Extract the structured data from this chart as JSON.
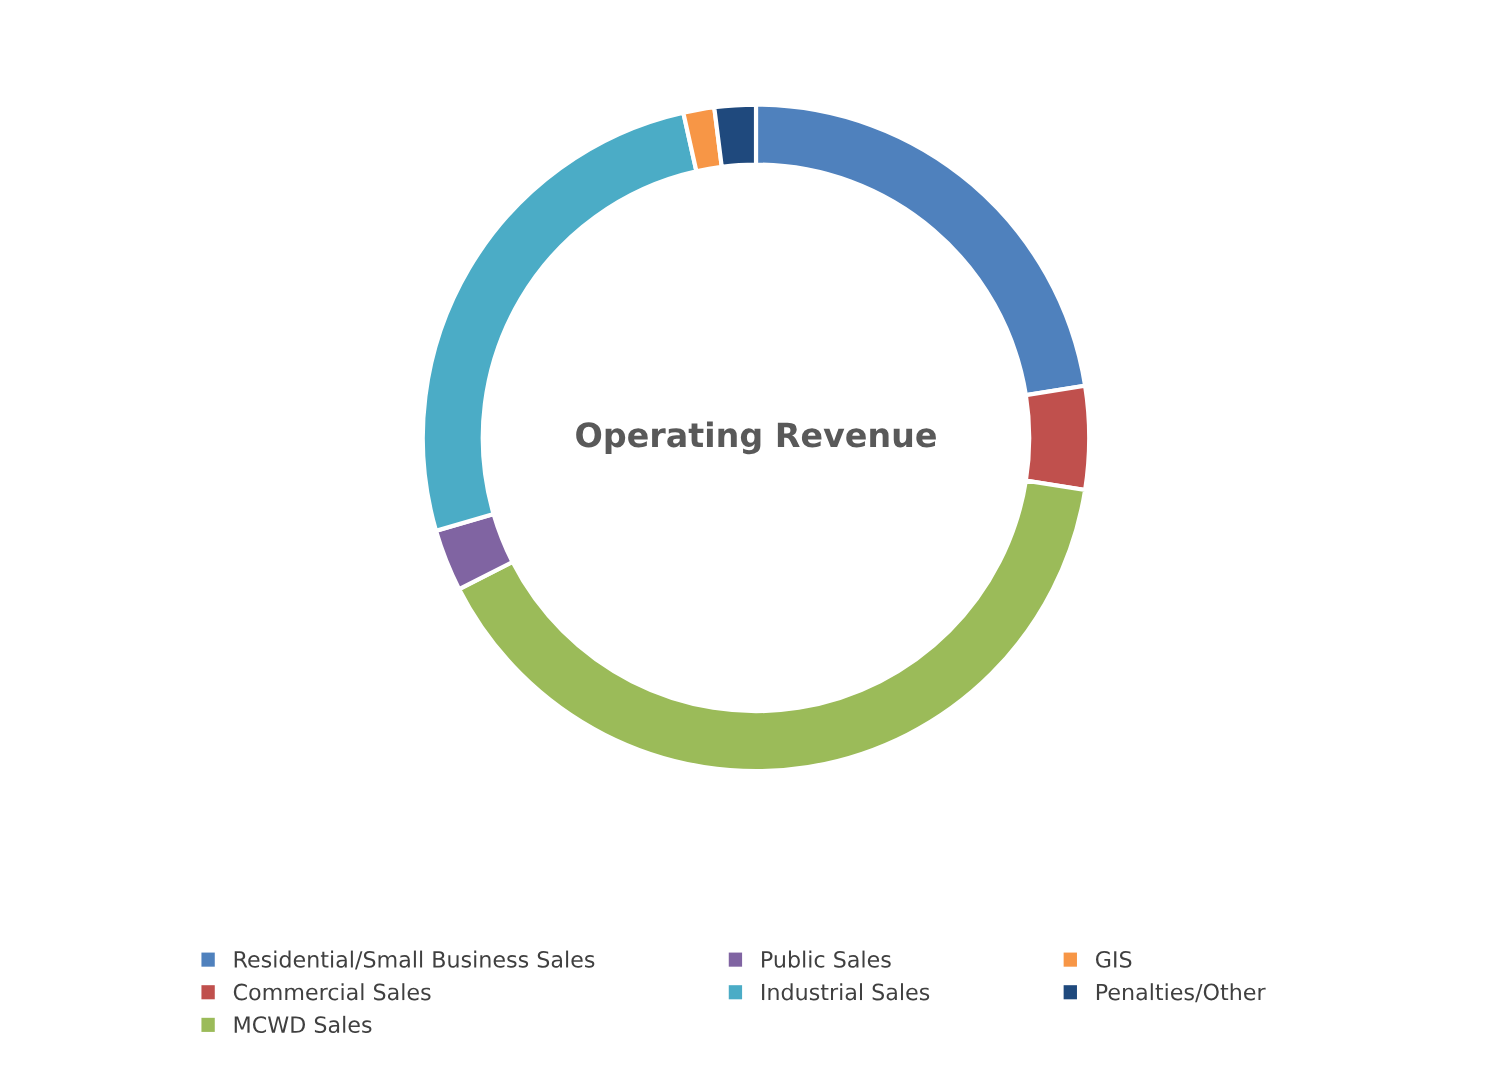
{
  "chart_data": {
    "type": "donut",
    "title": "Operating Revenue",
    "categories": [
      "Residential/Small Business Sales",
      "Commercial Sales",
      "MCWD Sales",
      "Public Sales",
      "Industrial Sales",
      "GIS",
      "Penalties/Other"
    ],
    "values": [
      22.5,
      5,
      40,
      3,
      26,
      1.5,
      2
    ],
    "colors": [
      "#4f81bd",
      "#c0504d",
      "#9bbb59",
      "#8064a2",
      "#4bacc6",
      "#f79646",
      "#1f497d"
    ],
    "legend": "bottom"
  }
}
